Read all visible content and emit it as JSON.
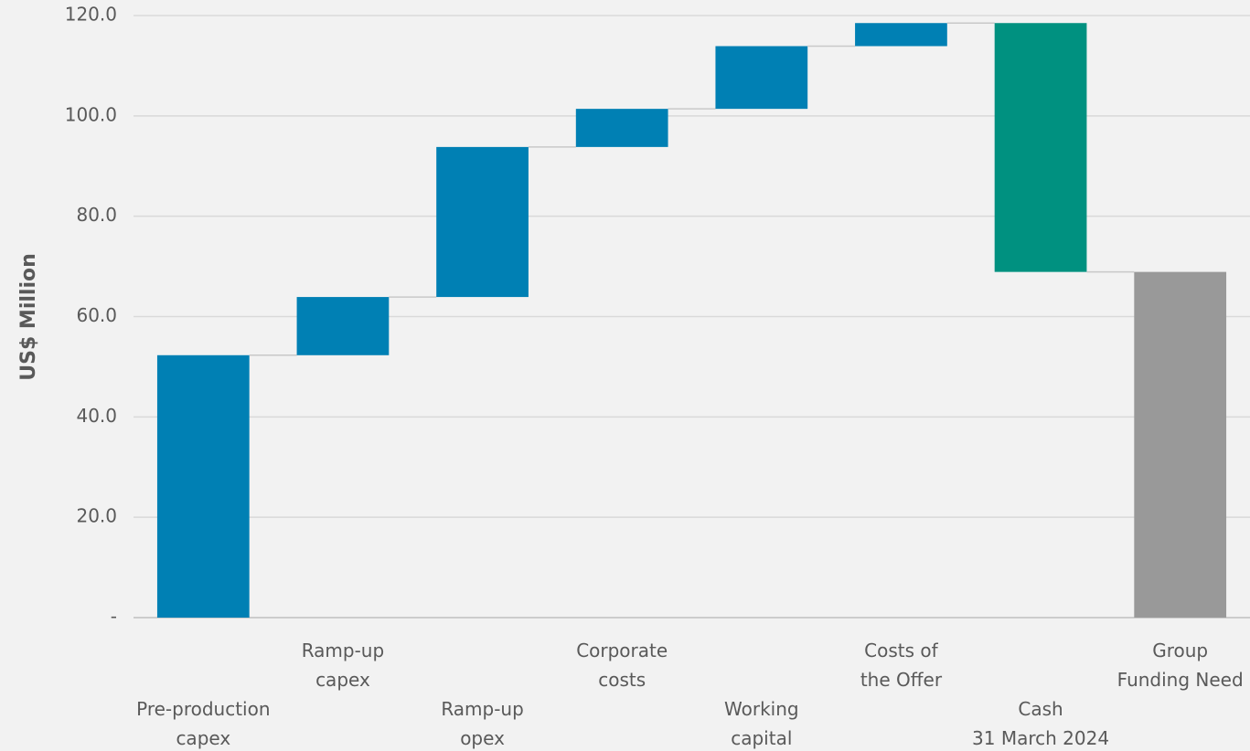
{
  "chart_data": {
    "type": "waterfall",
    "y_label": "US$ Million",
    "categories": [
      "Pre-production\ncapex",
      "Ramp-up\ncapex",
      "Ramp-up\nopex",
      "Corporate\ncosts",
      "Working\ncapital",
      "Costs of\nthe Offer",
      "Cash\n31 March 2024",
      "Group\nFunding Need"
    ],
    "values": [
      52.3,
      11.6,
      29.9,
      7.6,
      12.5,
      4.6,
      -49.6,
      68.9
    ],
    "measure": [
      "relative",
      "relative",
      "relative",
      "relative",
      "relative",
      "relative",
      "relative",
      "total"
    ],
    "colors": [
      "#0080b4",
      "#0080b4",
      "#0080b4",
      "#0080b4",
      "#0080b4",
      "#0080b4",
      "#009180",
      "#999999"
    ],
    "ylim": [
      0,
      120
    ],
    "yticks": [
      {
        "value": 0,
        "label": "-"
      },
      {
        "value": 20,
        "label": "20.0"
      },
      {
        "value": 40,
        "label": "40.0"
      },
      {
        "value": 60,
        "label": "60.0"
      },
      {
        "value": 80,
        "label": "80.0"
      },
      {
        "value": 100,
        "label": "100.0"
      },
      {
        "value": 120,
        "label": "120.0"
      }
    ],
    "grid": true
  }
}
